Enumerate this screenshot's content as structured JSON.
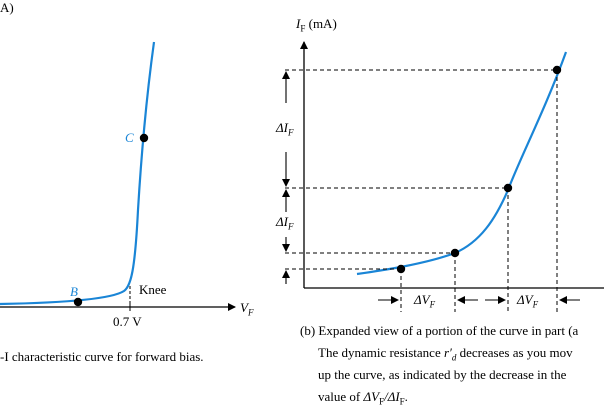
{
  "left_panel": {
    "corner_label": "A)",
    "knee_label": "Knee",
    "x_axis_label": "V",
    "x_axis_sub": "F",
    "tick_label": "0.7 V",
    "point_b": "B",
    "point_c": "C",
    "caption": "-I characteristic curve for forward bias."
  },
  "right_panel": {
    "y_axis_label": "I",
    "y_axis_sub": "F",
    "y_axis_unit": "(mA)",
    "delta_if_label": "ΔI",
    "delta_if_sub": "F",
    "delta_vf_label": "ΔV",
    "delta_vf_sub": "F",
    "caption_line1": "(b) Expanded view of a portion of the curve in part (a",
    "caption_line2_pre": "The dynamic resistance ",
    "caption_line2_var": "r′",
    "caption_line2_var_sub": "d",
    "caption_line2_post": " decreases as you mov",
    "caption_line3": "up the curve, as indicated by the decrease in the",
    "caption_line4_pre": "value of ",
    "caption_line4_ratio": "ΔV",
    "caption_line4_ratio_sub1": "F",
    "caption_line4_slash": "/ΔI",
    "caption_line4_ratio_sub2": "F",
    "caption_line4_post": "."
  },
  "colors": {
    "curve": "#1a85d6",
    "axis": "#000000"
  }
}
